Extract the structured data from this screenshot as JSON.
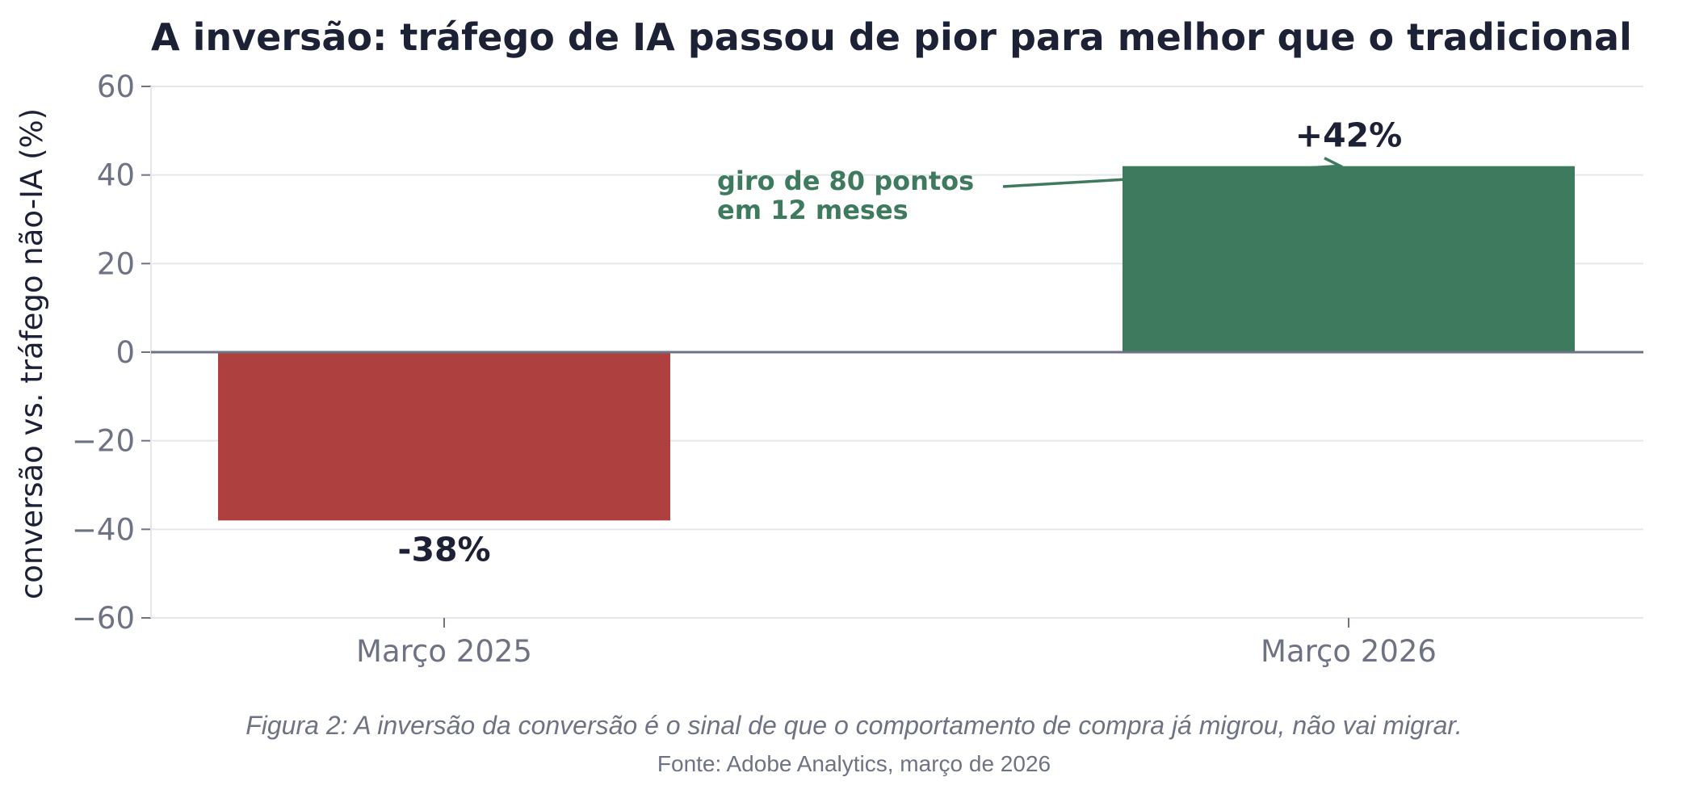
{
  "chart_data": {
    "type": "bar",
    "title": "A inversão: tráfego de IA passou de pior para melhor que o tradicional",
    "ylabel": "conversão vs. tráfego não-IA (%)",
    "xlabel": "",
    "categories": [
      "Março 2025",
      "Março 2026"
    ],
    "values": [
      -38,
      42
    ],
    "value_labels": [
      "-38%",
      "+42%"
    ],
    "bar_colors": [
      "#ae4140",
      "#3e7a5e"
    ],
    "ylim": [
      -60,
      60
    ],
    "yticks": [
      60,
      40,
      20,
      0,
      -20,
      -40,
      -60
    ],
    "ytick_labels": [
      "60",
      "40",
      "20",
      "0",
      "−20",
      "−40",
      "−60"
    ],
    "grid": true,
    "annotation": {
      "lines": [
        "giro de 80 pontos",
        "em 12 meses"
      ],
      "color": "#3e7a5e"
    }
  },
  "caption": {
    "figure": "Figura 2: A inversão da conversão é o sinal de que o comportamento de compra já migrou, não vai migrar.",
    "source": "Fonte: Adobe Analytics, março de 2026"
  }
}
